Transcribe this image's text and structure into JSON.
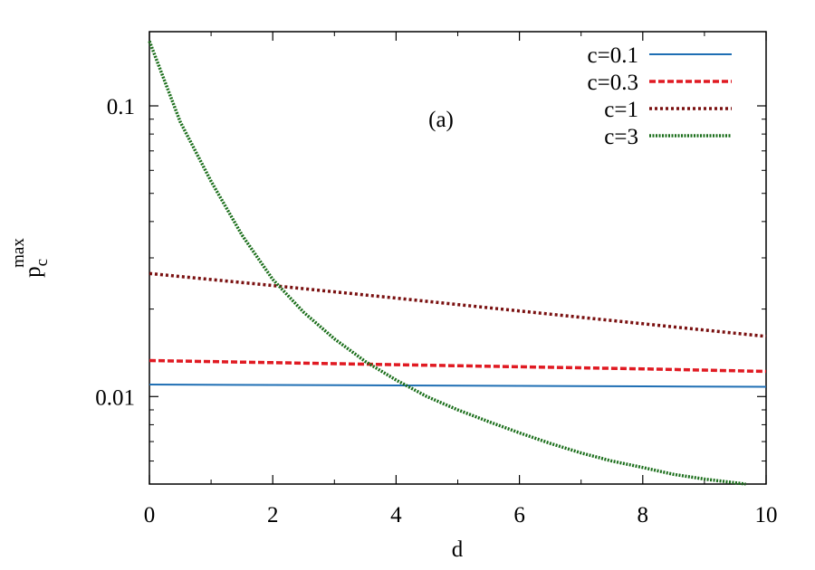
{
  "chart_data": {
    "type": "line",
    "title": "",
    "annotation": "(a)",
    "xlabel": "d",
    "ylabel_main": "p",
    "ylabel_sub": "c",
    "ylabel_sup": "max",
    "xlim": [
      0,
      10
    ],
    "ylim": [
      0.005,
      0.18
    ],
    "yscale": "log",
    "grid": false,
    "legend_position": "top-right",
    "xticks": [
      {
        "value": 0,
        "label": "0"
      },
      {
        "value": 2,
        "label": "2"
      },
      {
        "value": 4,
        "label": "4"
      },
      {
        "value": 6,
        "label": "6"
      },
      {
        "value": 8,
        "label": "8"
      },
      {
        "value": 10,
        "label": "10"
      }
    ],
    "yticks": [
      {
        "value": 0.01,
        "label": "0.01"
      },
      {
        "value": 0.1,
        "label": "0.1"
      }
    ],
    "series": [
      {
        "name": "c=0.1",
        "color": "#1f6fb4",
        "dash": "solid",
        "x": [
          0,
          2,
          4,
          6,
          8,
          10
        ],
        "y": [
          0.011,
          0.01096,
          0.01092,
          0.01088,
          0.01084,
          0.0108
        ]
      },
      {
        "name": "c=0.3",
        "color": "#e01a22",
        "dash": "dashed",
        "x": [
          0,
          2,
          4,
          6,
          8,
          10
        ],
        "y": [
          0.0133,
          0.01308,
          0.01287,
          0.01266,
          0.01245,
          0.0122
        ]
      },
      {
        "name": "c=1",
        "color": "#7a1010",
        "dash": "dotted",
        "x": [
          0,
          2,
          4,
          6,
          8,
          10
        ],
        "y": [
          0.0265,
          0.0241,
          0.0218,
          0.0197,
          0.0178,
          0.0161
        ]
      },
      {
        "name": "c=3",
        "color": "#1a6e1a",
        "dash": "dotted-dense",
        "x": [
          0,
          0.5,
          1,
          1.5,
          2,
          2.5,
          3,
          3.5,
          4,
          4.5,
          5,
          5.5,
          6,
          6.5,
          7,
          7.5,
          8,
          8.5,
          9,
          9.67
        ],
        "y": [
          0.167,
          0.088,
          0.055,
          0.036,
          0.0253,
          0.0195,
          0.0158,
          0.0132,
          0.0114,
          0.01,
          0.009,
          0.0082,
          0.0075,
          0.0069,
          0.0064,
          0.006,
          0.0057,
          0.0054,
          0.0052,
          0.005
        ]
      }
    ]
  }
}
